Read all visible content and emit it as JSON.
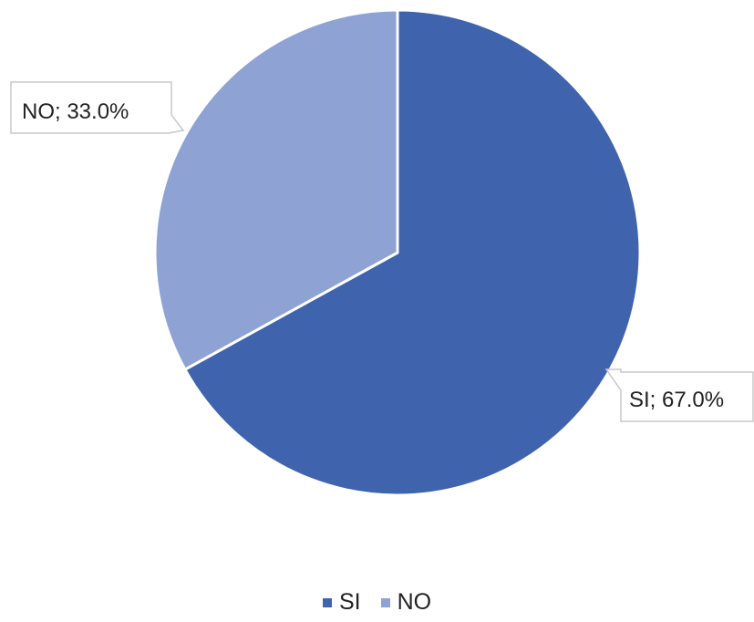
{
  "chart_data": {
    "type": "pie",
    "slices": [
      {
        "label": "SI",
        "value": 67.0,
        "color": "#3f64ad",
        "data_label": "SI; 67.0%"
      },
      {
        "label": "NO",
        "value": 33.0,
        "color": "#8fa2d4",
        "data_label": "NO; 33.0%"
      }
    ],
    "start_angle": "12 o'clock",
    "direction": "clockwise",
    "legend": {
      "placement": "bottom",
      "entries": [
        "SI",
        "NO"
      ]
    }
  }
}
